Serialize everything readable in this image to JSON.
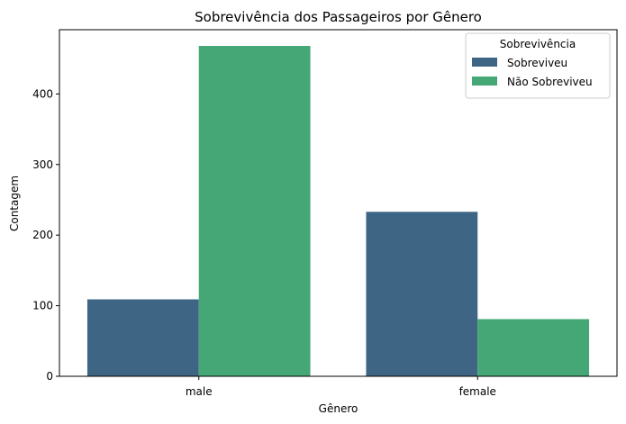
{
  "chart_data": {
    "type": "bar",
    "title": "Sobrevivência dos Passageiros por Gênero",
    "xlabel": "Gênero",
    "ylabel": "Contagem",
    "categories": [
      "male",
      "female"
    ],
    "series": [
      {
        "name": "Sobreviveu",
        "values": [
          109,
          233
        ],
        "color": "#3e6584"
      },
      {
        "name": "Não Sobreviveu",
        "values": [
          468,
          81
        ],
        "color": "#45a776"
      }
    ],
    "ylim": [
      0,
      491
    ],
    "yticks": [
      0,
      100,
      200,
      300,
      400
    ],
    "legend": {
      "title": "Sobrevivência",
      "placement": "top-right"
    },
    "grid": false
  }
}
